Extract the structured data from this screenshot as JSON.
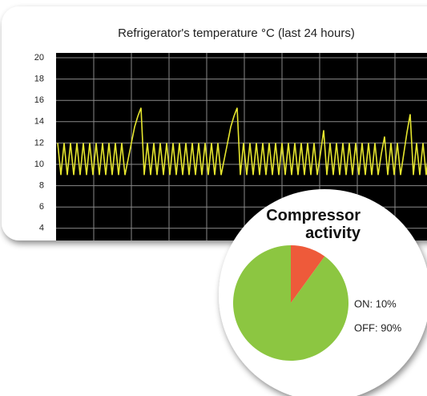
{
  "chart_data": [
    {
      "type": "line",
      "title": "Refrigerator's temperature °C (last 24 hours)",
      "color": "#e6e62e",
      "ylim": [
        0,
        20
      ],
      "yticks": [
        20,
        18,
        16,
        14,
        12,
        10,
        8,
        6,
        4
      ],
      "grid": true,
      "values": [
        12,
        9,
        12,
        9,
        12,
        9,
        12,
        9,
        12,
        9,
        12,
        9,
        12,
        9,
        12,
        9,
        12,
        9,
        12,
        9,
        12,
        9,
        10.5,
        12,
        13.5,
        14.5,
        15.3,
        9,
        12,
        9,
        12,
        9,
        12,
        9,
        12,
        9,
        12,
        9,
        12,
        9,
        12,
        9,
        12,
        9,
        12,
        9,
        12,
        9,
        12,
        9,
        12,
        9,
        10.5,
        12,
        13.5,
        14.5,
        15.3,
        9,
        12,
        9,
        12,
        9,
        12,
        9,
        12,
        9,
        12,
        9,
        12,
        9,
        12,
        9,
        12,
        9,
        12,
        9,
        12,
        9,
        12,
        9,
        12,
        9,
        11,
        13.2,
        9,
        12,
        9,
        12,
        9,
        12,
        9,
        12,
        9,
        12,
        9,
        12,
        9,
        12,
        9,
        12,
        9,
        11,
        12.6,
        9,
        12,
        9,
        12,
        9,
        11,
        13,
        14.7,
        9,
        12,
        9,
        12,
        9,
        12,
        9
      ]
    },
    {
      "type": "pie",
      "title": "Compressor activity",
      "values": [
        10,
        90
      ],
      "value_labels": [
        "ON: 10%",
        "OFF: 90%"
      ],
      "colors": [
        "#ee5a3a",
        "#8cc641"
      ]
    }
  ]
}
